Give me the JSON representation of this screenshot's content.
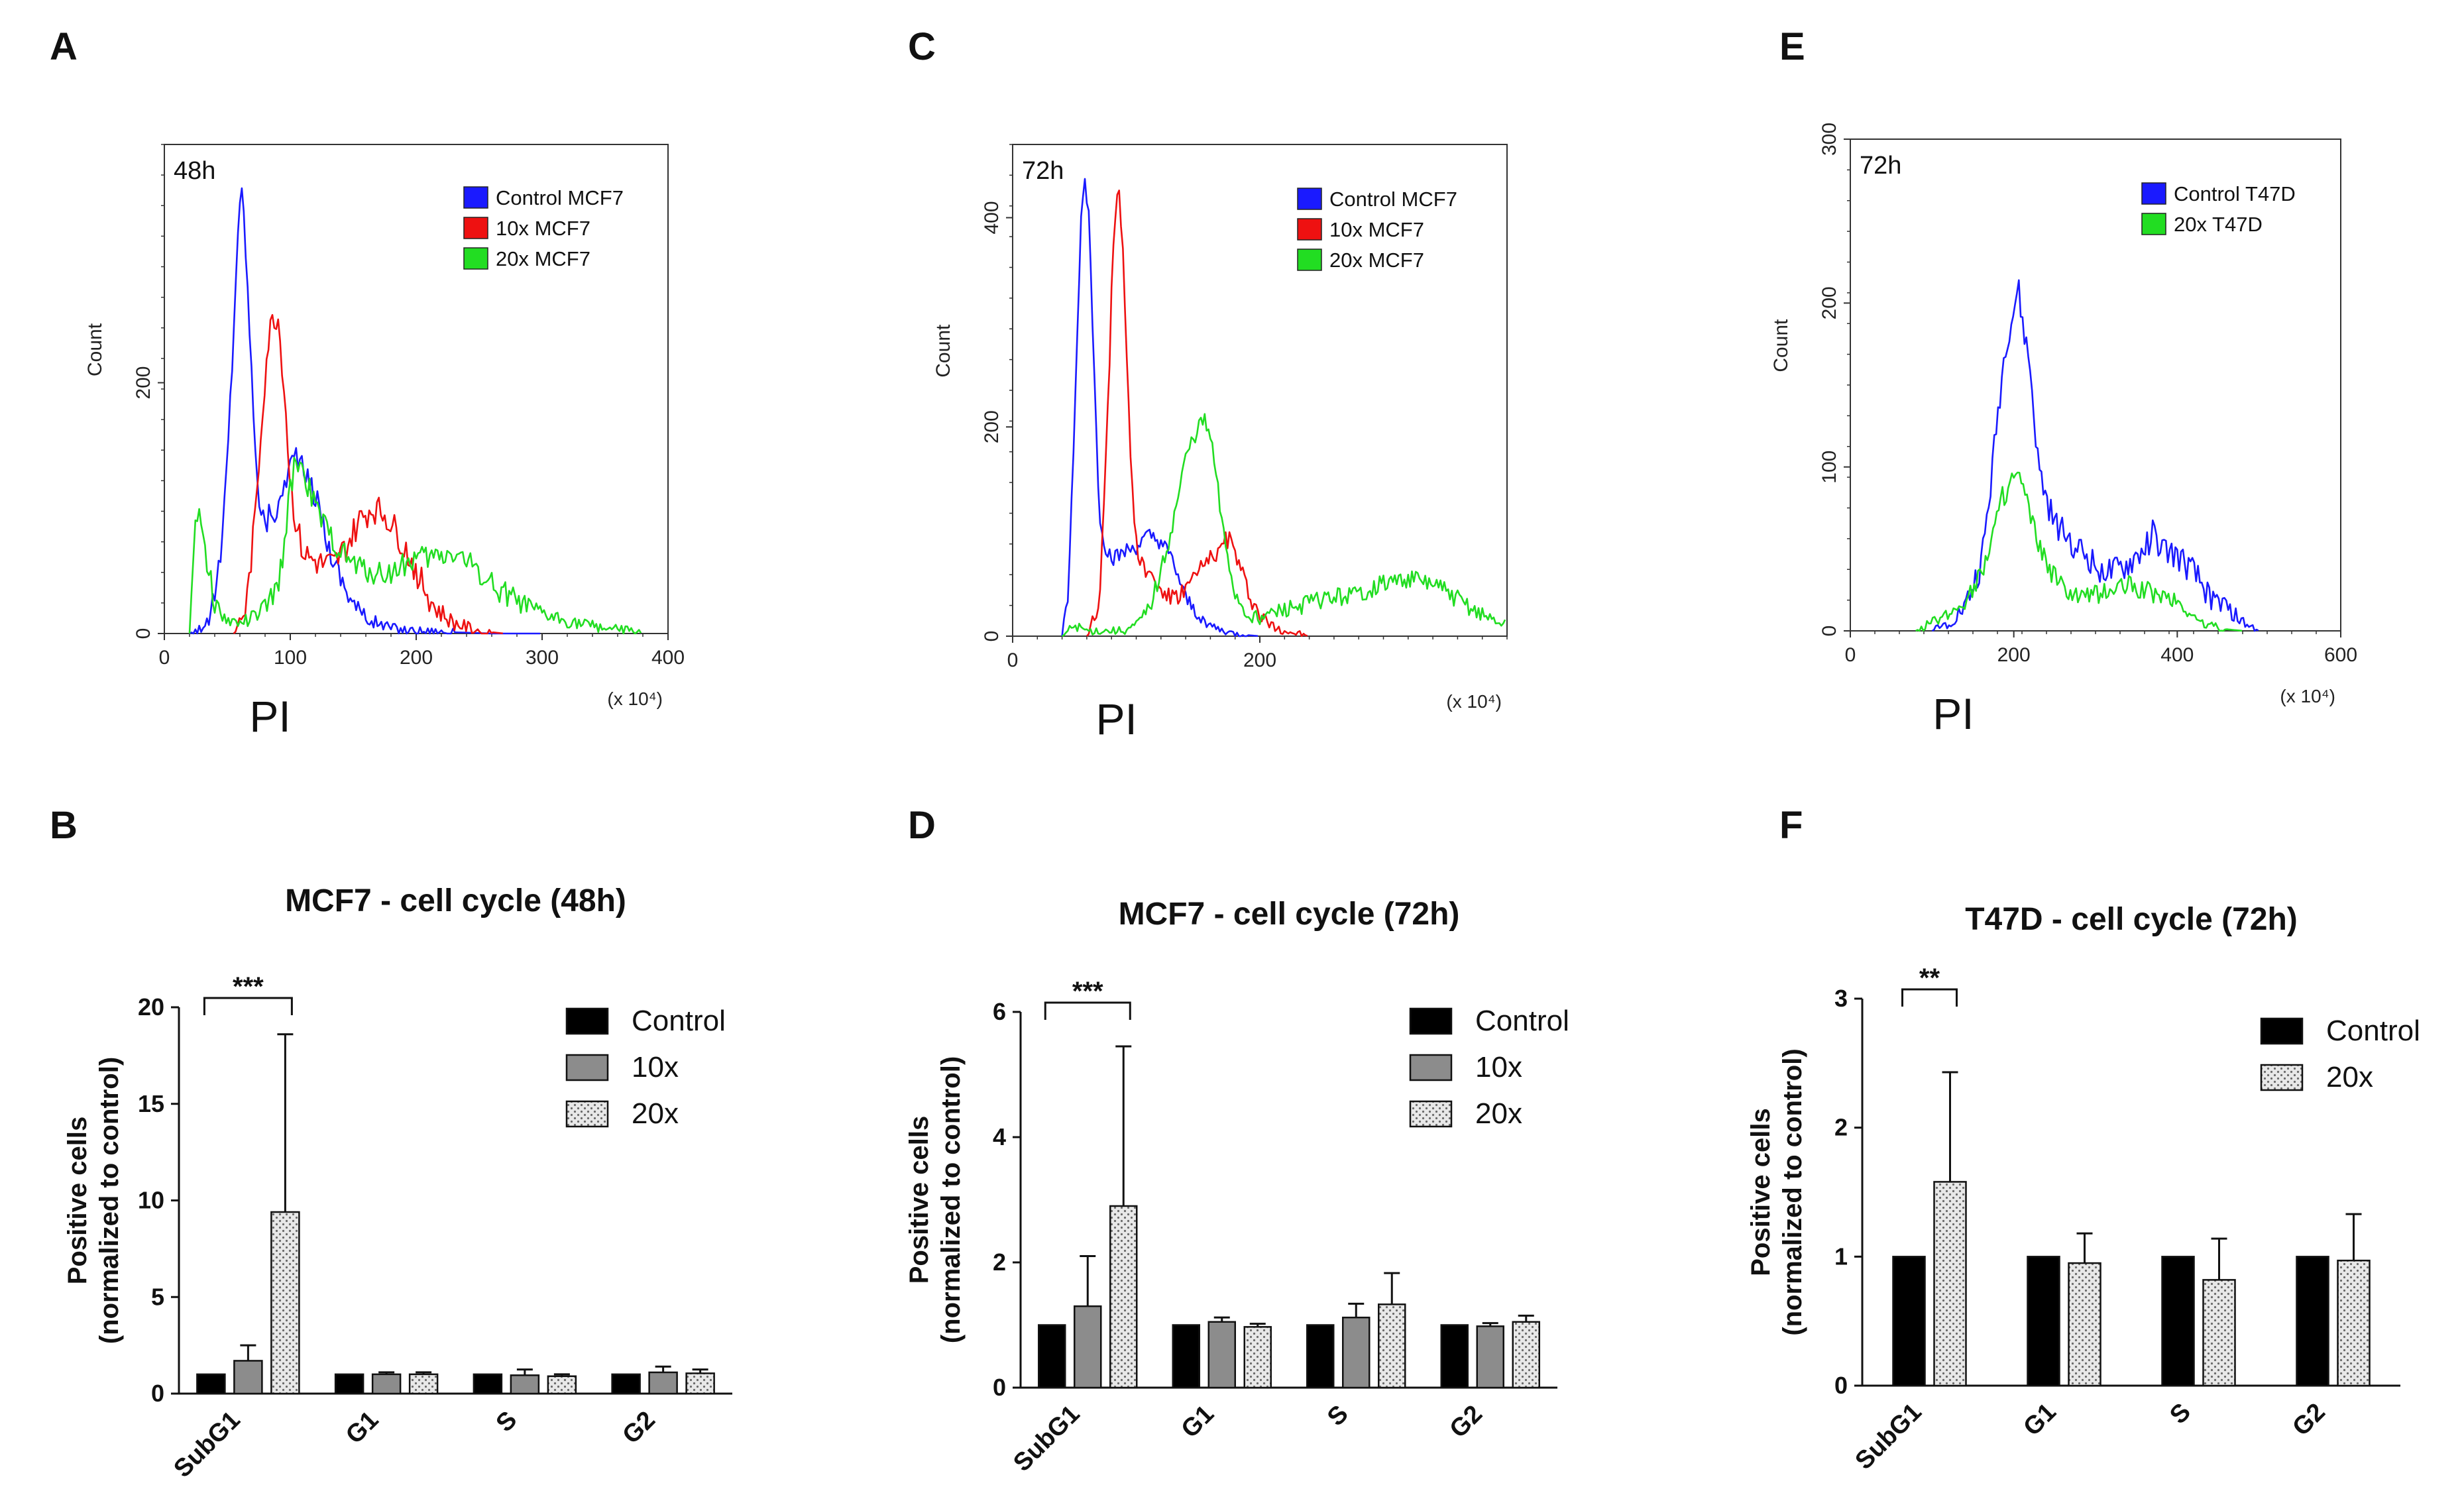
{
  "figure": {
    "background": "#ffffff"
  },
  "chart_data": [
    {
      "panel": "A",
      "type": "line",
      "subtype": "histogram",
      "time_label": "48h",
      "xlabel": "PI",
      "x_multiplier": "(x 10⁴)",
      "ylabel": "Count",
      "xlim": [
        0,
        400
      ],
      "ylim": [
        0,
        390
      ],
      "xticks": [
        0,
        100,
        200,
        300,
        400
      ],
      "yticks": [
        0,
        200
      ],
      "series": [
        {
          "name": "Control MCF7",
          "color": "#1a1aff",
          "x": [
            20,
            35,
            45,
            50,
            55,
            58,
            62,
            65,
            70,
            75,
            80,
            85,
            90,
            95,
            100,
            105,
            110,
            115,
            120,
            125,
            130,
            140,
            150,
            160,
            175,
            190,
            210,
            230,
            260,
            300
          ],
          "y": [
            0,
            8,
            60,
            140,
            240,
            320,
            355,
            300,
            190,
            110,
            85,
            100,
            95,
            120,
            135,
            145,
            130,
            120,
            110,
            95,
            70,
            45,
            25,
            12,
            6,
            3,
            2,
            1,
            0,
            0
          ]
        },
        {
          "name": "10x MCF7",
          "color": "#ee1111",
          "x": [
            55,
            65,
            72,
            78,
            82,
            86,
            90,
            95,
            100,
            105,
            110,
            115,
            125,
            135,
            145,
            155,
            165,
            175,
            185,
            195,
            205,
            215,
            230,
            250,
            270
          ],
          "y": [
            0,
            20,
            90,
            180,
            230,
            250,
            255,
            200,
            120,
            85,
            65,
            60,
            55,
            55,
            70,
            90,
            100,
            95,
            80,
            60,
            40,
            20,
            8,
            2,
            0
          ],
          "jitter": 12
        },
        {
          "name": "20x MCF7",
          "color": "#22dd22",
          "x": [
            20,
            25,
            30,
            35,
            40,
            45,
            50,
            60,
            70,
            80,
            90,
            95,
            100,
            105,
            110,
            120,
            130,
            140,
            150,
            160,
            170,
            180,
            190,
            200,
            210,
            220,
            230,
            240,
            250,
            260,
            270,
            280,
            290,
            300,
            320,
            340,
            360,
            380
          ],
          "y": [
            0,
            100,
            90,
            50,
            25,
            15,
            10,
            8,
            12,
            20,
            35,
            70,
            115,
            140,
            130,
            100,
            80,
            65,
            55,
            50,
            48,
            48,
            55,
            60,
            60,
            62,
            65,
            58,
            50,
            40,
            32,
            25,
            20,
            15,
            10,
            6,
            3,
            1
          ],
          "jitter": 10
        }
      ]
    },
    {
      "panel": "C",
      "type": "line",
      "subtype": "histogram",
      "time_label": "72h",
      "xlabel": "PI",
      "x_multiplier": "(x 10⁴)",
      "ylabel": "Count",
      "xlim": [
        0,
        400
      ],
      "ylim": [
        0,
        470
      ],
      "xticks": [
        0,
        200
      ],
      "yticks": [
        0,
        200,
        400
      ],
      "series": [
        {
          "name": "Control MCF7",
          "color": "#1a1aff",
          "x": [
            40,
            45,
            50,
            55,
            58,
            62,
            66,
            70,
            75,
            80,
            85,
            90,
            100,
            110,
            120,
            130,
            140,
            150,
            160,
            170,
            180,
            190,
            200
          ],
          "y": [
            0,
            40,
            200,
            390,
            440,
            400,
            250,
            120,
            85,
            75,
            75,
            80,
            85,
            95,
            90,
            70,
            35,
            20,
            10,
            5,
            2,
            1,
            0
          ],
          "jitter": 8
        },
        {
          "name": "10x MCF7",
          "color": "#ee1111",
          "x": [
            60,
            70,
            78,
            82,
            86,
            90,
            95,
            100,
            105,
            110,
            120,
            130,
            140,
            150,
            160,
            170,
            175,
            180,
            190,
            200,
            210,
            225,
            240
          ],
          "y": [
            0,
            30,
            250,
            400,
            430,
            350,
            180,
            90,
            70,
            60,
            45,
            35,
            45,
            60,
            75,
            85,
            95,
            80,
            45,
            20,
            10,
            4,
            0
          ],
          "jitter": 10
        },
        {
          "name": "20x MCF7",
          "color": "#22dd22",
          "x": [
            40,
            50,
            60,
            70,
            80,
            90,
            100,
            110,
            120,
            130,
            140,
            150,
            155,
            160,
            165,
            170,
            180,
            190,
            200,
            220,
            250,
            280,
            300,
            320,
            340,
            360,
            380,
            400
          ],
          "y": [
            0,
            10,
            5,
            5,
            5,
            5,
            10,
            25,
            60,
            110,
            170,
            200,
            205,
            190,
            150,
            100,
            40,
            20,
            18,
            25,
            35,
            40,
            50,
            55,
            50,
            35,
            20,
            10
          ],
          "jitter": 9
        }
      ]
    },
    {
      "panel": "E",
      "type": "line",
      "subtype": "histogram",
      "time_label": "72h",
      "xlabel": "PI",
      "x_multiplier": "(x 10⁴)",
      "ylabel": "Count",
      "xlim": [
        0,
        600
      ],
      "ylim": [
        0,
        300
      ],
      "xticks": [
        0,
        200,
        400,
        600
      ],
      "yticks": [
        0,
        100,
        200,
        300
      ],
      "series": [
        {
          "name": "Control T47D",
          "color": "#1a1aff",
          "x": [
            100,
            120,
            140,
            160,
            170,
            180,
            190,
            200,
            205,
            210,
            220,
            230,
            240,
            250,
            260,
            280,
            300,
            320,
            340,
            360,
            370,
            380,
            400,
            420,
            440,
            460,
            480,
            500
          ],
          "y": [
            0,
            5,
            15,
            40,
            80,
            130,
            175,
            195,
            210,
            190,
            160,
            100,
            80,
            65,
            60,
            50,
            40,
            35,
            40,
            50,
            60,
            50,
            45,
            35,
            20,
            15,
            5,
            0
          ],
          "jitter": 9
        },
        {
          "name": "20x T47D",
          "color": "#22dd22",
          "x": [
            80,
            100,
            120,
            140,
            160,
            175,
            185,
            195,
            205,
            215,
            225,
            240,
            260,
            280,
            300,
            320,
            340,
            360,
            380,
            400,
            420,
            440,
            460,
            480
          ],
          "y": [
            0,
            5,
            10,
            18,
            35,
            60,
            80,
            90,
            95,
            80,
            60,
            40,
            25,
            20,
            22,
            25,
            28,
            25,
            22,
            18,
            8,
            3,
            1,
            0
          ],
          "jitter": 7
        }
      ]
    },
    {
      "panel": "B",
      "type": "bar",
      "title": "MCF7 - cell cycle (48h)",
      "ylabel": "Positive cells",
      "ylabel2": "(normalized to control)",
      "categories": [
        "SubG1",
        "G1",
        "S",
        "G2"
      ],
      "ylim": [
        0,
        20
      ],
      "yticks": [
        0,
        5,
        10,
        15,
        20
      ],
      "series": [
        {
          "name": "Control",
          "pattern": "solid",
          "values": [
            1,
            1,
            1,
            1
          ],
          "errors": [
            0,
            0,
            0,
            0
          ]
        },
        {
          "name": "10x",
          "pattern": "gray",
          "values": [
            1.7,
            1.0,
            0.95,
            1.1
          ],
          "errors": [
            0.8,
            0.1,
            0.3,
            0.3
          ]
        },
        {
          "name": "20x",
          "pattern": "dotted",
          "values": [
            9.4,
            1.0,
            0.9,
            1.05
          ],
          "errors": [
            9.2,
            0.1,
            0.1,
            0.2
          ]
        }
      ],
      "significance": {
        "label": "***",
        "from_group": 0,
        "from_bar": 0,
        "to_bar": 2
      }
    },
    {
      "panel": "D",
      "type": "bar",
      "title": "MCF7 - cell cycle (72h)",
      "ylabel": "Positive cells",
      "ylabel2": "(normalized to control)",
      "categories": [
        "SubG1",
        "G1",
        "S",
        "G2"
      ],
      "ylim": [
        0,
        6
      ],
      "yticks": [
        0,
        2,
        4,
        6
      ],
      "series": [
        {
          "name": "Control",
          "pattern": "solid",
          "values": [
            1,
            1,
            1,
            1
          ],
          "errors": [
            0,
            0,
            0,
            0
          ]
        },
        {
          "name": "10x",
          "pattern": "gray",
          "values": [
            1.3,
            1.05,
            1.12,
            0.98
          ],
          "errors": [
            0.8,
            0.07,
            0.22,
            0.05
          ]
        },
        {
          "name": "20x",
          "pattern": "dotted",
          "values": [
            2.9,
            0.97,
            1.33,
            1.05
          ],
          "errors": [
            2.55,
            0.05,
            0.5,
            0.1
          ]
        }
      ],
      "significance": {
        "label": "***",
        "from_group": 0,
        "from_bar": 0,
        "to_bar": 2
      }
    },
    {
      "panel": "F",
      "type": "bar",
      "title": "T47D - cell cycle (72h)",
      "ylabel": "Positive cells",
      "ylabel2": "(normalized to control)",
      "categories": [
        "SubG1",
        "G1",
        "S",
        "G2"
      ],
      "ylim": [
        0,
        3
      ],
      "yticks": [
        0,
        1,
        2,
        3
      ],
      "series": [
        {
          "name": "Control",
          "pattern": "solid",
          "values": [
            1,
            1,
            1,
            1
          ],
          "errors": [
            0,
            0,
            0,
            0
          ]
        },
        {
          "name": "20x",
          "pattern": "dotted",
          "values": [
            1.58,
            0.95,
            0.82,
            0.97
          ],
          "errors": [
            0.85,
            0.23,
            0.32,
            0.36
          ]
        }
      ],
      "significance": {
        "label": "**",
        "from_group": 0,
        "from_bar": 0,
        "to_bar": 1
      }
    }
  ]
}
